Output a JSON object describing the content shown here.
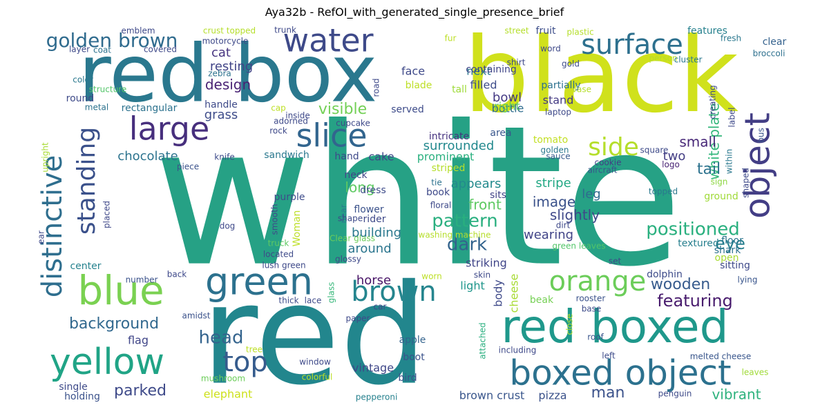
{
  "title": "Aya32b - RefOI_with_generated_single_presence_brief",
  "chart_data": {
    "type": "wordcloud",
    "title": "Aya32b - RefOI_with_generated_single_presence_brief",
    "colormap": "viridis",
    "words": [
      {
        "text": "white",
        "weight": 100,
        "color": "#26a185"
      },
      {
        "text": "red",
        "weight": 90,
        "color": "#22868d"
      },
      {
        "text": "black",
        "weight": 78,
        "color": "#d0e11c"
      },
      {
        "text": "red box",
        "weight": 72,
        "color": "#2a788e"
      },
      {
        "text": "red boxed",
        "weight": 40,
        "color": "#1f988b"
      },
      {
        "text": "boxed object",
        "weight": 30,
        "color": "#2c718e"
      },
      {
        "text": "water",
        "weight": 26,
        "color": "#3e4a89"
      },
      {
        "text": "large",
        "weight": 28,
        "color": "#472f7d"
      },
      {
        "text": "slice",
        "weight": 26,
        "color": "#32658e"
      },
      {
        "text": "blue",
        "weight": 34,
        "color": "#7ad151"
      },
      {
        "text": "green",
        "weight": 30,
        "color": "#2c718e"
      },
      {
        "text": "yellow",
        "weight": 30,
        "color": "#20a486"
      },
      {
        "text": "object",
        "weight": 28,
        "color": "#433e85"
      },
      {
        "text": "surface",
        "weight": 26,
        "color": "#2d708e"
      },
      {
        "text": "orange",
        "weight": 24,
        "color": "#6ccd5a"
      },
      {
        "text": "brown",
        "weight": 24,
        "color": "#25858e"
      },
      {
        "text": "distinctive",
        "weight": 24,
        "color": "#2e6e8e"
      },
      {
        "text": "standing",
        "weight": 22,
        "color": "#3b518b"
      },
      {
        "text": "golden brown",
        "weight": 18,
        "color": "#2f6b8e"
      },
      {
        "text": "side",
        "weight": 22,
        "color": "#b5de2b"
      },
      {
        "text": "top",
        "weight": 24,
        "color": "#365c8d"
      },
      {
        "text": "head",
        "weight": 16,
        "color": "#33638d"
      },
      {
        "text": "background",
        "weight": 14,
        "color": "#31688e"
      },
      {
        "text": "design",
        "weight": 14,
        "color": "#482173"
      },
      {
        "text": "cat",
        "weight": 11,
        "color": "#463480"
      },
      {
        "text": "resting",
        "weight": 11,
        "color": "#414487"
      },
      {
        "text": "grass",
        "weight": 12,
        "color": "#3e4c8a"
      },
      {
        "text": "visible",
        "weight": 14,
        "color": "#73d056"
      },
      {
        "text": "positioned",
        "weight": 15,
        "color": "#2ab07f"
      },
      {
        "text": "pattern",
        "weight": 15,
        "color": "#29af7f"
      },
      {
        "text": "dark",
        "weight": 16,
        "color": "#33638d"
      },
      {
        "text": "surrounded",
        "weight": 12,
        "color": "#23898e"
      },
      {
        "text": "featuring",
        "weight": 15,
        "color": "#481b6d"
      },
      {
        "text": "wooden",
        "weight": 15,
        "color": "#375b8d"
      },
      {
        "text": "white plate",
        "weight": 14,
        "color": "#32b67a"
      },
      {
        "text": "eye",
        "weight": 14,
        "color": "#277f8e"
      },
      {
        "text": "small",
        "weight": 13,
        "color": "#482878"
      },
      {
        "text": "tail",
        "weight": 14,
        "color": "#2c728e"
      },
      {
        "text": "two",
        "weight": 12,
        "color": "#433d84"
      },
      {
        "text": "chocolate",
        "weight": 12,
        "color": "#2c738e"
      },
      {
        "text": "stripe",
        "weight": 12,
        "color": "#22a884"
      },
      {
        "text": "image",
        "weight": 12,
        "color": "#3b528b"
      },
      {
        "text": "slightly",
        "weight": 13,
        "color": "#3f4889"
      },
      {
        "text": "wearing",
        "weight": 12,
        "color": "#414487"
      },
      {
        "text": "front",
        "weight": 12,
        "color": "#5ec962"
      },
      {
        "text": "long",
        "weight": 12,
        "color": "#5ec962"
      },
      {
        "text": "appears",
        "weight": 11,
        "color": "#238a8d"
      },
      {
        "text": "building",
        "weight": 12,
        "color": "#2a788e"
      },
      {
        "text": "around",
        "weight": 12,
        "color": "#2b758e"
      },
      {
        "text": "prominent",
        "weight": 11,
        "color": "#2ab07f"
      },
      {
        "text": "cake",
        "weight": 10,
        "color": "#3f4788"
      },
      {
        "text": "horse",
        "weight": 12,
        "color": "#481467"
      },
      {
        "text": "parked",
        "weight": 14,
        "color": "#3e4a89"
      },
      {
        "text": "vibrant",
        "weight": 13,
        "color": "#2db27d"
      },
      {
        "text": "man",
        "weight": 14,
        "color": "#3b528b"
      },
      {
        "text": "flag",
        "weight": 11,
        "color": "#404688"
      },
      {
        "text": "vintage",
        "weight": 11,
        "color": "#3f4788"
      },
      {
        "text": "elephant",
        "weight": 11,
        "color": "#cde11d"
      },
      {
        "text": "pizza",
        "weight": 10,
        "color": "#3b528b"
      },
      {
        "text": "brown crust",
        "weight": 10,
        "color": "#39568c"
      },
      {
        "text": "bowl",
        "weight": 11,
        "color": "#443983"
      },
      {
        "text": "bottle",
        "weight": 10,
        "color": "#2f6c8e"
      },
      {
        "text": "right",
        "weight": 11,
        "color": "#5ec962"
      },
      {
        "text": "stand",
        "weight": 10,
        "color": "#443a83"
      },
      {
        "text": "partially",
        "weight": 9,
        "color": "#2c718e"
      },
      {
        "text": "tall",
        "weight": 9,
        "color": "#9fda3a"
      },
      {
        "text": "tomato",
        "weight": 10,
        "color": "#c2df23"
      },
      {
        "text": "area",
        "weight": 9,
        "color": "#39568c"
      },
      {
        "text": "intricate",
        "weight": 9,
        "color": "#46337f"
      },
      {
        "text": "leg",
        "weight": 11,
        "color": "#2f6b8e"
      },
      {
        "text": "body",
        "weight": 10,
        "color": "#3e4989"
      },
      {
        "text": "cheese",
        "weight": 10,
        "color": "#a8db34"
      },
      {
        "text": "light",
        "weight": 10,
        "color": "#1f968b"
      },
      {
        "text": "striking",
        "weight": 10,
        "color": "#404588"
      },
      {
        "text": "beak",
        "weight": 9,
        "color": "#75d054"
      },
      {
        "text": "apple",
        "weight": 9,
        "color": "#33638d"
      },
      {
        "text": "boot",
        "weight": 9,
        "color": "#3b528b"
      },
      {
        "text": "bird",
        "weight": 8,
        "color": "#3b528b"
      },
      {
        "text": "face",
        "weight": 10,
        "color": "#3e4989"
      },
      {
        "text": "next",
        "weight": 10,
        "color": "#2a768e"
      },
      {
        "text": "filled",
        "weight": 10,
        "color": "#3e4c8a"
      },
      {
        "text": "containing",
        "weight": 9,
        "color": "#404688"
      },
      {
        "text": "blade",
        "weight": 9,
        "color": "#bddf26"
      },
      {
        "text": "fruit",
        "weight": 9,
        "color": "#3d4e8a"
      },
      {
        "text": "features",
        "weight": 9,
        "color": "#26818e"
      },
      {
        "text": "clear",
        "weight": 9,
        "color": "#34618d"
      },
      {
        "text": "broccoli",
        "weight": 7,
        "color": "#2d708e"
      },
      {
        "text": "gold",
        "weight": 7,
        "color": "#3e4c8a"
      },
      {
        "text": "square",
        "weight": 8,
        "color": "#3e4a89"
      },
      {
        "text": "logo",
        "weight": 7,
        "color": "#482374"
      },
      {
        "text": "bus",
        "weight": 8,
        "color": "#3a548c"
      },
      {
        "text": "golden",
        "weight": 7,
        "color": "#2a788e"
      },
      {
        "text": "sauce",
        "weight": 7,
        "color": "#375a8c"
      },
      {
        "text": "cookie",
        "weight": 7,
        "color": "#433e85"
      },
      {
        "text": "aircraft",
        "weight": 7,
        "color": "#39558c"
      },
      {
        "text": "ground",
        "weight": 8,
        "color": "#a0da39"
      },
      {
        "text": "shark",
        "weight": 8,
        "color": "#2c718e"
      },
      {
        "text": "floor",
        "weight": 8,
        "color": "#2b758e"
      },
      {
        "text": "textured",
        "weight": 8,
        "color": "#277f8e"
      },
      {
        "text": "open",
        "weight": 8,
        "color": "#a8db34"
      },
      {
        "text": "sitting",
        "weight": 8,
        "color": "#3e4989"
      },
      {
        "text": "dolphin",
        "weight": 8,
        "color": "#3e4c8a"
      },
      {
        "text": "rooster",
        "weight": 7,
        "color": "#3b528b"
      },
      {
        "text": "base",
        "weight": 7,
        "color": "#3e4c8a"
      },
      {
        "text": "green leaves",
        "weight": 7,
        "color": "#52c569"
      },
      {
        "text": "sign",
        "weight": 7,
        "color": "#8fd744"
      },
      {
        "text": "worn",
        "weight": 7,
        "color": "#bddf26"
      },
      {
        "text": "skin",
        "weight": 7,
        "color": "#3e4989"
      },
      {
        "text": "set",
        "weight": 7,
        "color": "#3e4989"
      },
      {
        "text": "lying",
        "weight": 6,
        "color": "#39558c"
      },
      {
        "text": "melted cheese",
        "weight": 7,
        "color": "#39568c"
      },
      {
        "text": "penguin",
        "weight": 7,
        "color": "#3e4a89"
      },
      {
        "text": "left",
        "weight": 7,
        "color": "#3e4c8a"
      },
      {
        "text": "roof",
        "weight": 6,
        "color": "#39558c"
      },
      {
        "text": "close",
        "weight": 6,
        "color": "#b5de2b"
      },
      {
        "text": "attached",
        "weight": 6,
        "color": "#29af7f"
      },
      {
        "text": "including",
        "weight": 7,
        "color": "#3e4989"
      },
      {
        "text": "leaves",
        "weight": 6,
        "color": "#a0da39"
      },
      {
        "text": "tree",
        "weight": 8,
        "color": "#bddf26"
      },
      {
        "text": "mushroom",
        "weight": 7,
        "color": "#6ccd5a"
      },
      {
        "text": "colorful",
        "weight": 7,
        "color": "#bddf26"
      },
      {
        "text": "window",
        "weight": 6,
        "color": "#3e4989"
      },
      {
        "text": "pepperoni",
        "weight": 6,
        "color": "#26818e"
      },
      {
        "text": "single",
        "weight": 8,
        "color": "#3e4a89"
      },
      {
        "text": "holding",
        "weight": 7,
        "color": "#3b528b"
      },
      {
        "text": "number",
        "weight": 7,
        "color": "#3b528b"
      },
      {
        "text": "back",
        "weight": 7,
        "color": "#3e4989"
      },
      {
        "text": "center",
        "weight": 8,
        "color": "#26828e"
      },
      {
        "text": "dog",
        "weight": 7,
        "color": "#3e4989"
      },
      {
        "text": "placed",
        "weight": 6,
        "color": "#3f4889"
      },
      {
        "text": "amidst",
        "weight": 6,
        "color": "#3b528b"
      },
      {
        "text": "thick",
        "weight": 6,
        "color": "#3e4c8a"
      },
      {
        "text": "lace",
        "weight": 6,
        "color": "#3e4989"
      },
      {
        "text": "glass",
        "weight": 6,
        "color": "#35b779"
      },
      {
        "text": "car",
        "weight": 6,
        "color": "#3e4989"
      },
      {
        "text": "paper",
        "weight": 6,
        "color": "#3e4989"
      },
      {
        "text": "Clear glass",
        "weight": 6,
        "color": "#6ccd5a"
      },
      {
        "text": "located",
        "weight": 7,
        "color": "#3e4a89"
      },
      {
        "text": "lush green",
        "weight": 7,
        "color": "#3e4989"
      },
      {
        "text": "glossy",
        "weight": 6,
        "color": "#3e4989"
      },
      {
        "text": "truck",
        "weight": 6,
        "color": "#5ec962"
      },
      {
        "text": "smooth",
        "weight": 7,
        "color": "#3e4989"
      },
      {
        "text": "Woman",
        "weight": 8,
        "color": "#bddf26"
      },
      {
        "text": "purple",
        "weight": 8,
        "color": "#3e4c8a"
      },
      {
        "text": "near",
        "weight": 6,
        "color": "#2a788e"
      },
      {
        "text": "shape",
        "weight": 6,
        "color": "#3e4a89"
      },
      {
        "text": "rider",
        "weight": 7,
        "color": "#3e4989"
      },
      {
        "text": "flower",
        "weight": 7,
        "color": "#3b528b"
      },
      {
        "text": "dress",
        "weight": 8,
        "color": "#3e4c8a"
      },
      {
        "text": "washing machine",
        "weight": 7,
        "color": "#b5de2b"
      },
      {
        "text": "neck",
        "weight": 8,
        "color": "#404688"
      },
      {
        "text": "book",
        "weight": 7,
        "color": "#3e4989"
      },
      {
        "text": "sits",
        "weight": 8,
        "color": "#414487"
      },
      {
        "text": "floral",
        "weight": 6,
        "color": "#3e4989"
      },
      {
        "text": "tie",
        "weight": 6,
        "color": "#2c728e"
      },
      {
        "text": "striped",
        "weight": 7,
        "color": "#b5de2b"
      },
      {
        "text": "hand",
        "weight": 7,
        "color": "#3e4989"
      },
      {
        "text": "sandwich",
        "weight": 8,
        "color": "#2a788e"
      },
      {
        "text": "knife",
        "weight": 7,
        "color": "#3e4c8a"
      },
      {
        "text": "piece",
        "weight": 7,
        "color": "#3b528b"
      },
      {
        "text": "upright",
        "weight": 6,
        "color": "#a8db34"
      },
      {
        "text": "ear",
        "weight": 6,
        "color": "#3e4989"
      },
      {
        "text": "handle",
        "weight": 8,
        "color": "#3e4a89"
      },
      {
        "text": "rectangular",
        "weight": 8,
        "color": "#2c728e"
      },
      {
        "text": "round",
        "weight": 8,
        "color": "#3e4a89"
      },
      {
        "text": "metal",
        "weight": 6,
        "color": "#2c728e"
      },
      {
        "text": "structure",
        "weight": 6,
        "color": "#52c569"
      },
      {
        "text": "color",
        "weight": 6,
        "color": "#2a788e"
      },
      {
        "text": "layer",
        "weight": 6,
        "color": "#3e4989"
      },
      {
        "text": "coat",
        "weight": 7,
        "color": "#2c728e"
      },
      {
        "text": "emblem",
        "weight": 6,
        "color": "#3e4989"
      },
      {
        "text": "covered",
        "weight": 7,
        "color": "#3e4989"
      },
      {
        "text": "crust topped",
        "weight": 7,
        "color": "#b5de2b"
      },
      {
        "text": "trunk",
        "weight": 6,
        "color": "#3e4989"
      },
      {
        "text": "motorcycle",
        "weight": 7,
        "color": "#3e4989"
      },
      {
        "text": "zebra",
        "weight": 6,
        "color": "#2c728e"
      },
      {
        "text": "road",
        "weight": 6,
        "color": "#3e4989"
      },
      {
        "text": "cap",
        "weight": 6,
        "color": "#bddf26"
      },
      {
        "text": "inside",
        "weight": 6,
        "color": "#3e4989"
      },
      {
        "text": "adorned",
        "weight": 6,
        "color": "#3e4989"
      },
      {
        "text": "rock",
        "weight": 6,
        "color": "#3e4989"
      },
      {
        "text": "cupcake",
        "weight": 6,
        "color": "#3e4989"
      },
      {
        "text": "served",
        "weight": 8,
        "color": "#3e4c8a"
      },
      {
        "text": "fur",
        "weight": 6,
        "color": "#bddf26"
      },
      {
        "text": "street",
        "weight": 6,
        "color": "#b5de2b"
      },
      {
        "text": "plastic",
        "weight": 6,
        "color": "#b5de2b"
      },
      {
        "text": "fresh",
        "weight": 6,
        "color": "#2a788e"
      },
      {
        "text": "word",
        "weight": 6,
        "color": "#3e4989"
      },
      {
        "text": "shirt",
        "weight": 6,
        "color": "#3e4989"
      },
      {
        "text": "person",
        "weight": 6,
        "color": "#b5de2b"
      },
      {
        "text": "cluster",
        "weight": 6,
        "color": "#2a788e"
      },
      {
        "text": "vase",
        "weight": 6,
        "color": "#b5de2b"
      },
      {
        "text": "creating",
        "weight": 6,
        "color": "#3e4989"
      },
      {
        "text": "laptop",
        "weight": 6,
        "color": "#3e4989"
      },
      {
        "text": "label",
        "weight": 6,
        "color": "#3e4989"
      },
      {
        "text": "within",
        "weight": 6,
        "color": "#2a788e"
      },
      {
        "text": "shaped",
        "weight": 6,
        "color": "#3e4989"
      },
      {
        "text": "topped",
        "weight": 6,
        "color": "#2a788e"
      },
      {
        "text": "dirt",
        "weight": 6,
        "color": "#3e4989"
      }
    ]
  }
}
